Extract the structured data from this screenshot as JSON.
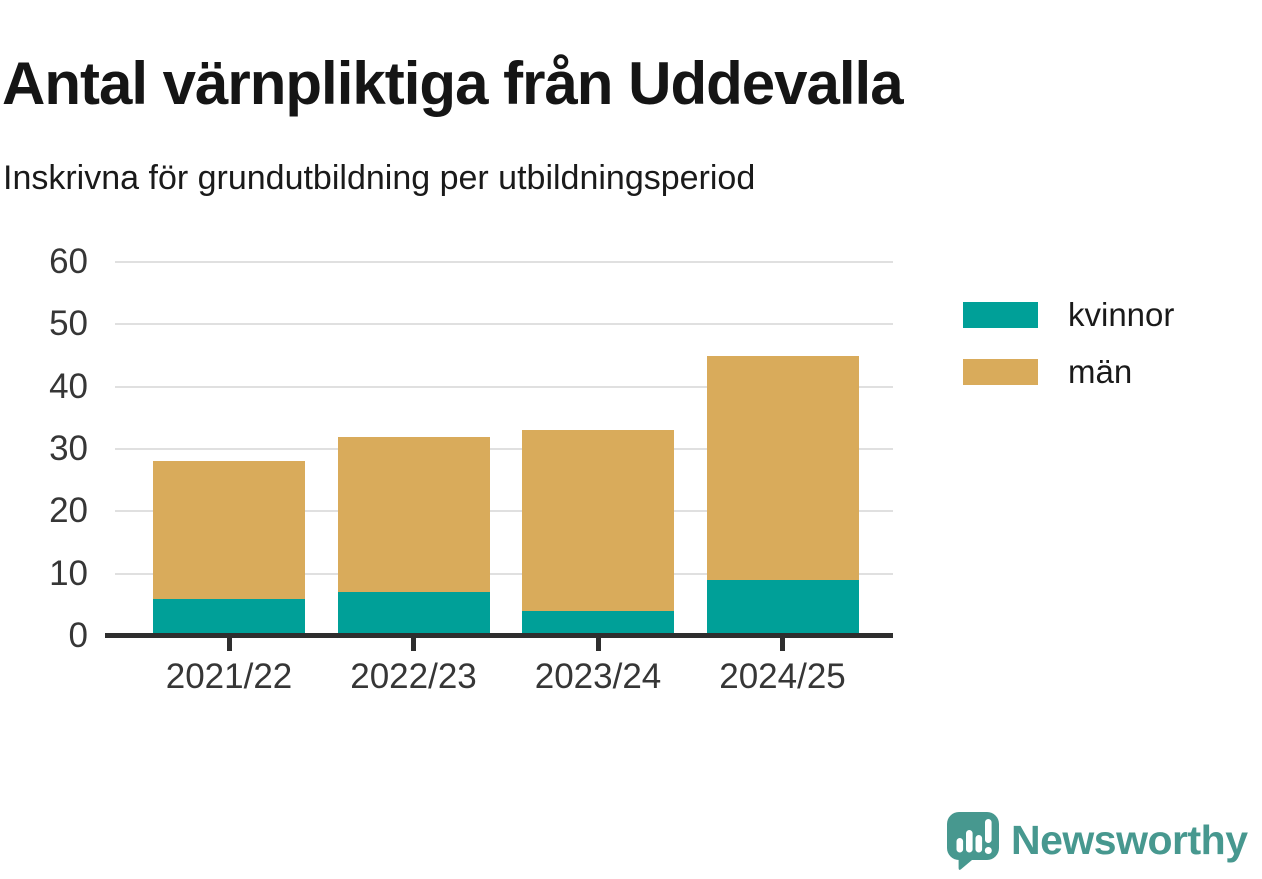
{
  "header": {
    "title": "Antal värnpliktiga från Uddevalla",
    "subtitle": "Inskrivna för grundutbildning per utbildningsperiod"
  },
  "chart_data": {
    "type": "bar",
    "stacked": true,
    "title": "Antal värnpliktiga från Uddevalla",
    "subtitle": "Inskrivna för grundutbildning per utbildningsperiod",
    "categories": [
      "2021/22",
      "2022/23",
      "2023/24",
      "2024/25"
    ],
    "series": [
      {
        "name": "kvinnor",
        "color": "#00a098",
        "values": [
          6,
          7,
          4,
          9
        ]
      },
      {
        "name": "män",
        "color": "#d9ab5b",
        "values": [
          22,
          25,
          29,
          36
        ]
      }
    ],
    "stacked_totals": [
      28,
      32,
      33,
      45
    ],
    "xlabel": "",
    "ylabel": "",
    "ylim": [
      0,
      60
    ],
    "yticks": [
      0,
      10,
      20,
      30,
      40,
      50,
      60
    ],
    "grid": "horizontal",
    "legend_position": "right"
  },
  "legend": {
    "items": [
      {
        "label": "kvinnor",
        "color": "#00a098"
      },
      {
        "label": "män",
        "color": "#d9ab5b"
      }
    ]
  },
  "footer": {
    "brand_name": "Newsworthy",
    "brand_icon": "newsworthy-speech-bubble-bar-chart-icon",
    "brand_color": "#47988f"
  },
  "colors": {
    "bar_kvinnor": "#00a098",
    "bar_man": "#d9ab5b",
    "axis": "#2e2e2e",
    "grid": "#e0e0e0",
    "tick_label": "#363636",
    "title": "#151515",
    "background": "#ffffff"
  }
}
